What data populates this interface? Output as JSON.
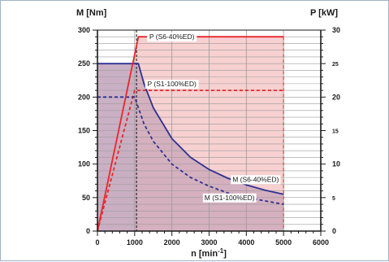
{
  "chart_data": {
    "type": "line",
    "y_left_label": "M [Nm]",
    "y_right_label": "P [kW]",
    "x_label_base": "n [min",
    "x_label_sup": "-1",
    "x_label_tail": "]",
    "xlim": [
      0,
      6000
    ],
    "ylim_left": [
      0,
      300
    ],
    "ylim_right": [
      0,
      30
    ],
    "x_ticks": [
      0,
      1000,
      2000,
      3000,
      4000,
      5000,
      6000
    ],
    "y_ticks_left": [
      0,
      50,
      100,
      150,
      200,
      250,
      300
    ],
    "y_ticks_right": [
      0,
      5,
      10,
      15,
      20,
      25,
      30
    ],
    "grid": true,
    "colors": {
      "power": "#e8262c",
      "torque": "#2e3192",
      "fill_blue": "#c5cbe6",
      "fill_pink": "#f6c8c8",
      "fill_purple": "#c9a6b8",
      "grid": "#9a9a9a"
    },
    "series": [
      {
        "name": "P (S6-40%ED)",
        "axis": "right",
        "style": "solid",
        "points": [
          [
            0,
            0
          ],
          [
            1100,
            29
          ],
          [
            5000,
            29
          ]
        ]
      },
      {
        "name": "P (S1-100%ED)",
        "axis": "right",
        "style": "dashed",
        "points": [
          [
            0,
            0
          ],
          [
            1000,
            21
          ],
          [
            5000,
            21
          ]
        ]
      },
      {
        "name": "M (S6-40%ED)",
        "axis": "left",
        "style": "solid",
        "points": [
          [
            0,
            250
          ],
          [
            1100,
            250
          ],
          [
            1250,
            220
          ],
          [
            1500,
            184
          ],
          [
            2000,
            138
          ],
          [
            2500,
            110
          ],
          [
            3000,
            92
          ],
          [
            3500,
            79
          ],
          [
            4000,
            69
          ],
          [
            4500,
            61
          ],
          [
            5000,
            55
          ]
        ]
      },
      {
        "name": "M (S1-100%ED)",
        "axis": "left",
        "style": "dashed",
        "points": [
          [
            0,
            200
          ],
          [
            1000,
            200
          ],
          [
            1250,
            160
          ],
          [
            1500,
            134
          ],
          [
            2000,
            100
          ],
          [
            2500,
            80
          ],
          [
            3000,
            67
          ],
          [
            3500,
            57
          ],
          [
            4000,
            50
          ],
          [
            4500,
            45
          ],
          [
            5000,
            40
          ]
        ]
      }
    ],
    "base_speed_line": 1050,
    "max_speed_line": 5000
  }
}
